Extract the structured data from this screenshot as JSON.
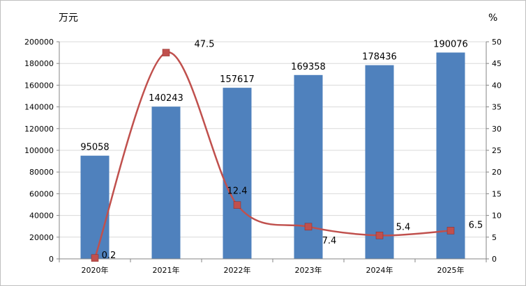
{
  "chart_data": {
    "type": "bar+line",
    "categories": [
      "2020年",
      "2021年",
      "2022年",
      "2023年",
      "2024年",
      "2025年"
    ],
    "bar_series": {
      "values": [
        95058,
        140243,
        157617,
        169358,
        178436,
        190076
      ],
      "color": "#4f81bd",
      "axis": "left"
    },
    "line_series": {
      "values": [
        0.2,
        47.5,
        12.4,
        7.4,
        5.4,
        6.5
      ],
      "color": "#c0504d",
      "marker": "square",
      "smooth": true,
      "axis": "right"
    },
    "left_axis": {
      "unit": "万元",
      "range": [
        0,
        200000
      ],
      "ticks": [
        "0",
        "20000",
        "40000",
        "60000",
        "80000",
        "100000",
        "120000",
        "140000",
        "160000",
        "180000",
        "200000"
      ]
    },
    "right_axis": {
      "unit": "%",
      "range": [
        0,
        50
      ],
      "ticks": [
        "0",
        "5",
        "10",
        "15",
        "20",
        "25",
        "30",
        "35",
        "40",
        "45",
        "50"
      ]
    },
    "grid": true,
    "grid_color": "#d9d9d9",
    "legend": "none"
  }
}
